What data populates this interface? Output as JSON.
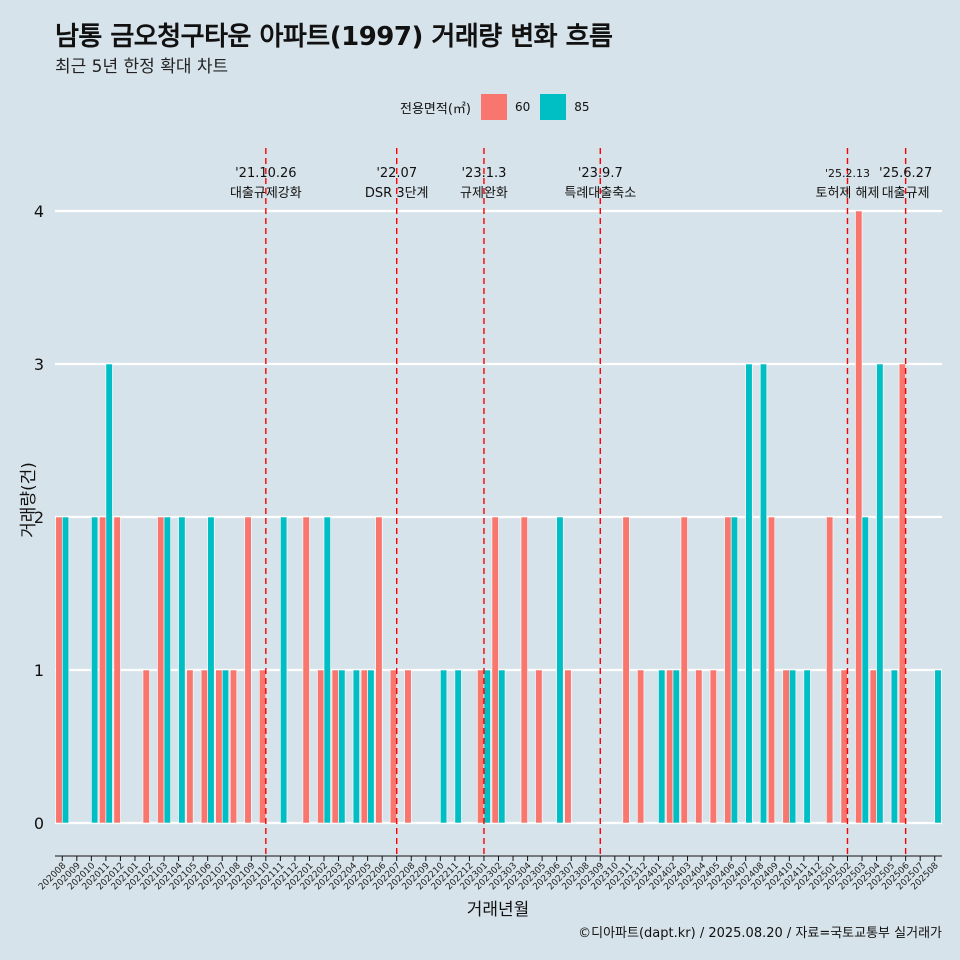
{
  "title": "남통 금오청구타운 아파트(1997) 거래량 변화 흐름",
  "subtitle": "최근 5년 한정 확대 차트",
  "caption": "©디아파트(dapt.kr) / 2025.08.20 / 자료=국토교통부 실거래가",
  "legend": {
    "title": "전용면적(㎡)",
    "items": [
      {
        "label": "60",
        "color": "#F8766D"
      },
      {
        "label": "85",
        "color": "#00BFC4"
      }
    ]
  },
  "chart_data": {
    "type": "bar",
    "xlabel": "거래년월",
    "ylabel": "거래량(건)",
    "ylim": [
      0,
      4
    ],
    "yticks": [
      0,
      1,
      2,
      3,
      4
    ],
    "grid": true,
    "legend_position": "top",
    "categories": [
      "202008",
      "202009",
      "202010",
      "202011",
      "202012",
      "202101",
      "202102",
      "202103",
      "202104",
      "202105",
      "202106",
      "202107",
      "202108",
      "202109",
      "202110",
      "202111",
      "202112",
      "202201",
      "202202",
      "202203",
      "202204",
      "202205",
      "202206",
      "202207",
      "202208",
      "202209",
      "202210",
      "202211",
      "202212",
      "202301",
      "202302",
      "202303",
      "202304",
      "202305",
      "202306",
      "202307",
      "202308",
      "202309",
      "202310",
      "202311",
      "202312",
      "202401",
      "202402",
      "202403",
      "202404",
      "202405",
      "202406",
      "202407",
      "202408",
      "202409",
      "202410",
      "202411",
      "202412",
      "202501",
      "202502",
      "202503",
      "202504",
      "202505",
      "202506",
      "202507",
      "202508"
    ],
    "series": [
      {
        "name": "60",
        "color": "#F8766D",
        "values": [
          2,
          0,
          0,
          2,
          2,
          0,
          1,
          2,
          0,
          1,
          1,
          1,
          1,
          2,
          1,
          0,
          0,
          2,
          1,
          1,
          0,
          1,
          2,
          1,
          1,
          0,
          0,
          0,
          0,
          1,
          2,
          0,
          2,
          1,
          0,
          1,
          0,
          0,
          0,
          2,
          1,
          0,
          1,
          2,
          1,
          1,
          2,
          0,
          0,
          2,
          1,
          0,
          0,
          2,
          1,
          4,
          1,
          0,
          3,
          0,
          0
        ]
      },
      {
        "name": "85",
        "color": "#00BFC4",
        "values": [
          2,
          0,
          2,
          3,
          0,
          0,
          0,
          2,
          2,
          0,
          2,
          1,
          0,
          0,
          0,
          2,
          0,
          0,
          2,
          1,
          1,
          1,
          0,
          0,
          0,
          0,
          1,
          1,
          0,
          1,
          1,
          0,
          0,
          0,
          2,
          0,
          0,
          0,
          0,
          0,
          0,
          1,
          1,
          0,
          0,
          0,
          2,
          3,
          3,
          0,
          1,
          1,
          0,
          0,
          0,
          2,
          3,
          1,
          0,
          0,
          1
        ]
      }
    ],
    "events": [
      {
        "category": "202110",
        "date": "'21.10.26",
        "label": "대출규제강화"
      },
      {
        "category": "202207",
        "date": "'22.07",
        "label": "DSR 3단계"
      },
      {
        "category": "202301",
        "date": "'23.1.3",
        "label": "규제완화"
      },
      {
        "category": "202309",
        "date": "'23.9.7",
        "label": "특례대출축소"
      },
      {
        "category": "202502",
        "date": "'25.2.13",
        "label": "토허제 해제"
      },
      {
        "category": "202506",
        "date": "'25.6.27",
        "label": "대출규제"
      }
    ]
  }
}
